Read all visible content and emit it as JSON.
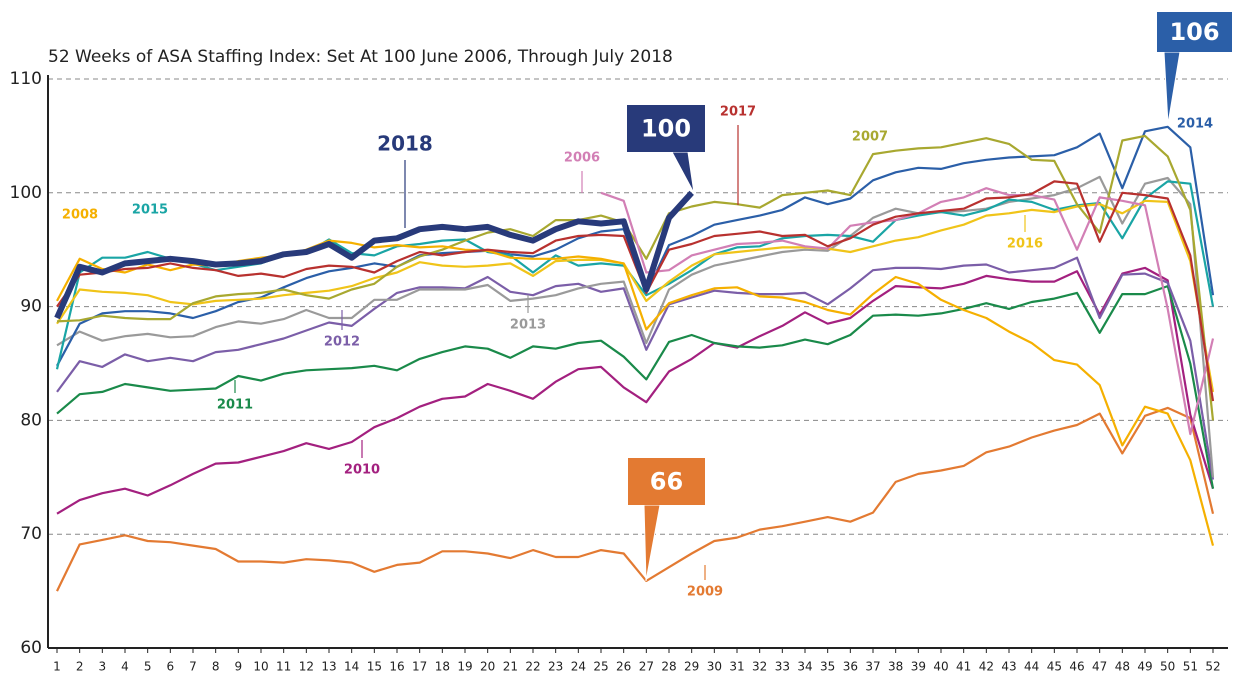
{
  "chart_data": {
    "type": "line",
    "title": "52 Weeks of ASA Staffing Index: Set At 100 June 2006, Through July 2018",
    "x": [
      1,
      2,
      3,
      4,
      5,
      6,
      7,
      8,
      9,
      10,
      11,
      12,
      13,
      14,
      15,
      16,
      17,
      18,
      19,
      20,
      21,
      22,
      23,
      24,
      25,
      26,
      27,
      28,
      29,
      30,
      31,
      32,
      33,
      34,
      35,
      36,
      37,
      38,
      39,
      40,
      41,
      42,
      43,
      44,
      45,
      46,
      47,
      48,
      49,
      50,
      51,
      52
    ],
    "xlim": [
      1,
      52
    ],
    "ylim": [
      60,
      110
    ],
    "yticks": [
      60,
      70,
      80,
      90,
      100,
      110
    ],
    "grid": true,
    "annotations": [
      "106",
      "100",
      "66"
    ],
    "series": [
      {
        "name": "2009",
        "color": "#e37a32",
        "values": [
          65,
          69.1,
          69.5,
          69.9,
          69.4,
          69.3,
          69,
          68.7,
          67.6,
          67.6,
          67.5,
          67.8,
          67.7,
          67.5,
          66.7,
          67.3,
          67.5,
          68.5,
          68.5,
          68.3,
          67.9,
          68.6,
          68,
          68,
          68.6,
          68.3,
          65.9,
          67.1,
          68.3,
          69.4,
          69.7,
          70.4,
          70.7,
          71.1,
          71.5,
          71.1,
          71.9,
          74.6,
          75.3,
          75.6,
          76,
          77.2,
          77.7,
          78.5,
          79.1,
          79.6,
          80.6,
          77.1,
          80.4,
          81.1,
          80.2,
          71.8
        ]
      },
      {
        "name": "2010",
        "color": "#a3207f",
        "values": [
          71.8,
          73,
          73.6,
          74,
          73.4,
          74.3,
          75.3,
          76.2,
          76.3,
          76.8,
          77.3,
          78,
          77.5,
          78.1,
          79.4,
          80.2,
          81.2,
          81.9,
          82.1,
          83.2,
          82.6,
          81.9,
          83.4,
          84.5,
          84.7,
          82.9,
          81.6,
          84.3,
          85.4,
          86.8,
          86.4,
          87.4,
          88.3,
          89.5,
          88.5,
          89,
          90.5,
          91.8,
          91.7,
          91.6,
          92,
          92.7,
          92.4,
          92.2,
          92.2,
          93.1,
          89.3,
          92.9,
          93.4,
          92.3,
          80.5,
          74
        ]
      },
      {
        "name": "2011",
        "color": "#1a8a4a",
        "values": [
          80.6,
          82.3,
          82.5,
          83.2,
          82.9,
          82.6,
          82.7,
          82.8,
          83.9,
          83.5,
          84.1,
          84.4,
          84.5,
          84.6,
          84.8,
          84.4,
          85.4,
          86,
          86.5,
          86.3,
          85.5,
          86.5,
          86.3,
          86.8,
          87,
          85.6,
          83.6,
          86.9,
          87.5,
          86.8,
          86.5,
          86.4,
          86.6,
          87.1,
          86.7,
          87.5,
          89.2,
          89.3,
          89.2,
          89.4,
          89.8,
          90.3,
          89.8,
          90.4,
          90.7,
          91.2,
          87.7,
          91.1,
          91.1,
          91.8,
          85,
          74
        ]
      },
      {
        "name": "2012",
        "color": "#7b5ea8",
        "values": [
          82.5,
          85.2,
          84.7,
          85.8,
          85.2,
          85.5,
          85.2,
          86,
          86.2,
          86.7,
          87.2,
          87.9,
          88.6,
          88.3,
          89.8,
          91.2,
          91.7,
          91.7,
          91.6,
          92.6,
          91.3,
          91,
          91.8,
          92,
          91.3,
          91.6,
          86.2,
          90.2,
          90.8,
          91.4,
          91.2,
          91.1,
          91.1,
          91.2,
          90.2,
          91.6,
          93.2,
          93.4,
          93.4,
          93.3,
          93.6,
          93.7,
          93,
          93.2,
          93.4,
          94.3,
          89,
          92.8,
          92.9,
          92.1,
          87,
          74.8
        ]
      },
      {
        "name": "2013",
        "color": "#9a9a9a",
        "values": [
          86.6,
          87.8,
          87,
          87.4,
          87.6,
          87.3,
          87.4,
          88.2,
          88.7,
          88.5,
          88.9,
          89.7,
          89,
          89,
          90.6,
          90.6,
          91.5,
          91.5,
          91.5,
          91.9,
          90.5,
          90.7,
          91,
          91.6,
          92,
          92.2,
          86.8,
          91.5,
          92.8,
          93.6,
          94,
          94.4,
          94.8,
          95,
          94.9,
          96.2,
          97.8,
          98.6,
          98.2,
          98.3,
          98.4,
          98.6,
          99.2,
          99.5,
          99.8,
          100.4,
          101.4,
          97.3,
          100.8,
          101.3,
          99,
          75
        ]
      },
      {
        "name": "2014",
        "color": "#2b5fa8",
        "values": [
          84.8,
          88.5,
          89.4,
          89.6,
          89.6,
          89.4,
          89,
          89.6,
          90.4,
          90.8,
          91.7,
          92.5,
          93.1,
          93.4,
          93.8,
          93.5,
          94.5,
          94.7,
          94.8,
          94.9,
          94.6,
          94.4,
          95,
          96,
          96.6,
          96.8,
          91.2,
          95.4,
          96.2,
          97.2,
          97.6,
          98,
          98.5,
          99.6,
          99,
          99.5,
          101.1,
          101.8,
          102.2,
          102.1,
          102.6,
          102.9,
          103.1,
          103.2,
          103.3,
          104,
          105.2,
          100.4,
          105.4,
          105.8,
          104,
          91
        ]
      },
      {
        "name": "2015",
        "color": "#1aa5a5",
        "values": [
          84.5,
          93,
          94.3,
          94.3,
          94.8,
          94.2,
          93.8,
          93.2,
          93.5,
          93.8,
          94.5,
          94.7,
          95.9,
          94.7,
          94.5,
          95.3,
          95.5,
          95.8,
          95.9,
          94.8,
          94.5,
          93,
          94.5,
          93.6,
          93.8,
          93.6,
          91,
          92,
          93.2,
          94.6,
          95.2,
          95.3,
          96,
          96.2,
          96.3,
          96.2,
          95.7,
          97.6,
          98,
          98.3,
          98,
          98.5,
          99.4,
          99.2,
          98.5,
          98.9,
          99.1,
          96,
          99.5,
          101,
          100.8,
          90
        ]
      },
      {
        "name": "2016",
        "color": "#f0c419",
        "values": [
          88.5,
          91.5,
          91.3,
          91.2,
          91,
          90.4,
          90.2,
          90.5,
          90.6,
          90.7,
          91,
          91.2,
          91.4,
          91.8,
          92.5,
          93,
          93.9,
          93.6,
          93.5,
          93.6,
          93.8,
          92.7,
          94,
          94.1,
          94.1,
          93.8,
          90.5,
          92.2,
          93.6,
          94.6,
          94.8,
          95,
          95.2,
          95.2,
          95.1,
          94.8,
          95.3,
          95.8,
          96.1,
          96.7,
          97.2,
          98,
          98.2,
          98.5,
          98.3,
          98.8,
          99,
          98.2,
          99.3,
          99.2,
          94,
          82.5
        ]
      },
      {
        "name": "2007",
        "color": "#a8a830",
        "values": [
          88.7,
          88.8,
          89.2,
          89,
          88.9,
          88.9,
          90.3,
          90.9,
          91.1,
          91.2,
          91.5,
          91,
          90.7,
          91.5,
          92,
          93.5,
          94.4,
          95,
          95.8,
          96.5,
          96.8,
          96.2,
          97.6,
          97.6,
          98,
          97.4,
          94.2,
          98.2,
          98.8,
          99.2,
          99,
          98.7,
          99.8,
          100,
          100.2,
          99.8,
          103.4,
          103.7,
          103.9,
          104,
          104.4,
          104.8,
          104.3,
          102.9,
          102.8,
          99,
          96.5,
          104.6,
          105,
          103.2,
          98.5,
          80
        ]
      },
      {
        "name": "2008",
        "color": "#f5b000",
        "values": [
          90.5,
          94.2,
          93.3,
          93,
          93.7,
          93.2,
          93.7,
          93.6,
          94,
          94.3,
          94.5,
          95,
          95.8,
          95.6,
          95.2,
          95.4,
          95.2,
          95.3,
          95,
          94.9,
          94.3,
          94.2,
          94.2,
          94.4,
          94.2,
          93.8,
          88,
          90.3,
          91,
          91.6,
          91.7,
          90.9,
          90.8,
          90.4,
          89.7,
          89.3,
          91.1,
          92.6,
          92,
          90.6,
          89.7,
          89,
          87.8,
          86.8,
          85.3,
          84.9,
          83.1,
          77.8,
          81.2,
          80.6,
          76.5,
          69
        ]
      },
      {
        "name": "2006",
        "color": "#d27fb5",
        "values": [
          null,
          null,
          null,
          null,
          null,
          null,
          null,
          null,
          null,
          null,
          null,
          null,
          null,
          null,
          null,
          null,
          null,
          null,
          null,
          null,
          null,
          null,
          null,
          null,
          100,
          99.3,
          93,
          93.2,
          94.5,
          95,
          95.5,
          95.6,
          95.8,
          95.3,
          95.1,
          97.1,
          97.4,
          97.6,
          98.2,
          99.2,
          99.6,
          100.4,
          99.8,
          99.8,
          99.4,
          95,
          99.6,
          99.3,
          98.9,
          89.8,
          78.8,
          87.2
        ]
      },
      {
        "name": "2017",
        "color": "#b8312f",
        "values": [
          90,
          92.8,
          93,
          93.3,
          93.4,
          93.8,
          93.4,
          93.2,
          92.7,
          92.9,
          92.6,
          93.3,
          93.6,
          93.5,
          93,
          94,
          94.8,
          94.5,
          94.8,
          95,
          94.8,
          94.7,
          95.8,
          96.2,
          96.3,
          96.2,
          91.2,
          95,
          95.5,
          96.2,
          96.4,
          96.6,
          96.2,
          96.3,
          95.3,
          96,
          97.2,
          97.9,
          98.2,
          98.4,
          98.6,
          99.5,
          99.6,
          99.9,
          101,
          100.8,
          95.7,
          100,
          99.8,
          99.5,
          94.5,
          81.7
        ]
      },
      {
        "name": "2018",
        "color": "#283a7a",
        "values": [
          89,
          93.5,
          93,
          93.8,
          94,
          94.2,
          94,
          93.7,
          93.8,
          94,
          94.6,
          94.8,
          95.5,
          94.3,
          95.8,
          96,
          96.8,
          97,
          96.8,
          97,
          96.3,
          95.8,
          96.8,
          97.5,
          97.3,
          97.5,
          91.5,
          97.8,
          100,
          null,
          null,
          null,
          null,
          null,
          null,
          null,
          null,
          null,
          null,
          null,
          null,
          null,
          null,
          null,
          null,
          null,
          null,
          null,
          null,
          null,
          null,
          null
        ]
      }
    ]
  }
}
